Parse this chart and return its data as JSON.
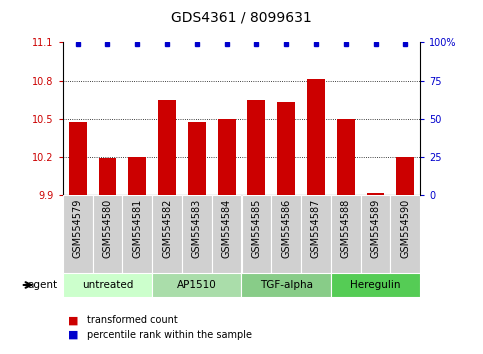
{
  "title": "GDS4361 / 8099631",
  "samples": [
    "GSM554579",
    "GSM554580",
    "GSM554581",
    "GSM554582",
    "GSM554583",
    "GSM554584",
    "GSM554585",
    "GSM554586",
    "GSM554587",
    "GSM554588",
    "GSM554589",
    "GSM554590"
  ],
  "bar_values": [
    10.47,
    10.19,
    10.2,
    10.65,
    10.47,
    10.5,
    10.65,
    10.63,
    10.81,
    10.5,
    9.91,
    10.2
  ],
  "percentile_values": [
    99,
    99,
    99,
    99,
    99,
    99,
    99,
    99,
    99,
    99,
    99,
    99
  ],
  "bar_color": "#cc0000",
  "dot_color": "#0000cc",
  "ylim_left": [
    9.9,
    11.1
  ],
  "ylim_right": [
    0,
    100
  ],
  "yticks_left": [
    9.9,
    10.2,
    10.5,
    10.8,
    11.1
  ],
  "yticks_right": [
    0,
    25,
    50,
    75,
    100
  ],
  "ytick_labels_left": [
    "9.9",
    "10.2",
    "10.5",
    "10.8",
    "11.1"
  ],
  "ytick_labels_right": [
    "0",
    "25",
    "50",
    "75",
    "100%"
  ],
  "groups": [
    {
      "label": "untreated",
      "start": 0,
      "end": 3,
      "color": "#ccffcc"
    },
    {
      "label": "AP1510",
      "start": 3,
      "end": 6,
      "color": "#99ee99"
    },
    {
      "label": "TGF-alpha",
      "start": 6,
      "end": 9,
      "color": "#66dd66"
    },
    {
      "label": "Heregulin",
      "start": 9,
      "end": 12,
      "color": "#33cc33"
    }
  ],
  "agent_label": "agent",
  "legend_entries": [
    {
      "color": "#cc0000",
      "label": "transformed count"
    },
    {
      "color": "#0000cc",
      "label": "percentile rank within the sample"
    }
  ],
  "background_color": "#ffffff",
  "plot_bg_color": "#ffffff",
  "grid_color": "#000000",
  "xtick_bg_color": "#d0d0d0",
  "title_fontsize": 10,
  "tick_fontsize": 7,
  "label_fontsize": 8
}
